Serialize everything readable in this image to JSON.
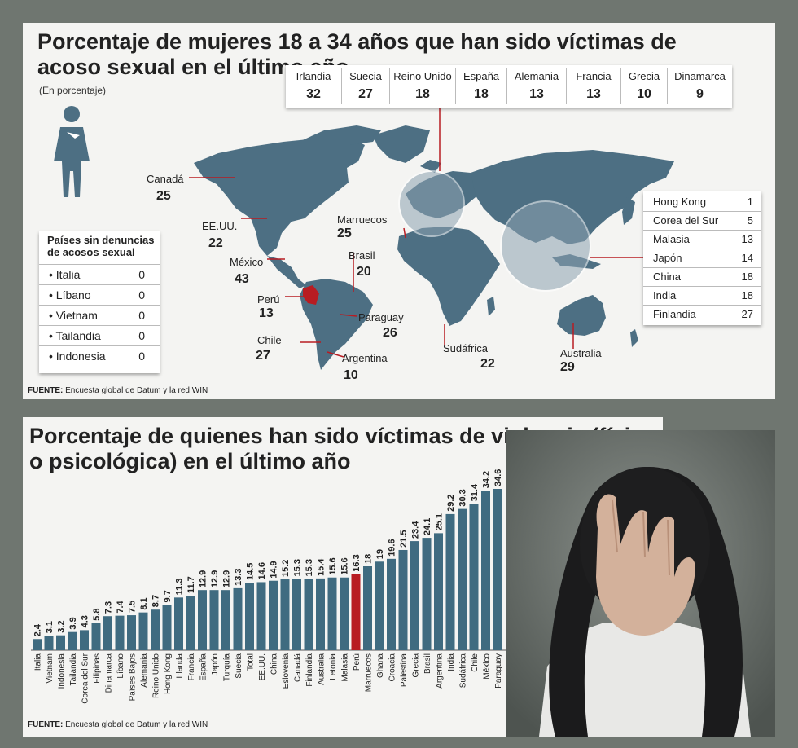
{
  "map_section": {
    "title": "Porcentaje de mujeres 18 a 34 años que han sido víctimas de acoso sexual en el último año",
    "subtitle": "(En porcentaje)",
    "europe_table": [
      {
        "country": "Irlandia",
        "value": "32"
      },
      {
        "country": "Suecia",
        "value": "27"
      },
      {
        "country": "Reino Unido",
        "value": "18"
      },
      {
        "country": "España",
        "value": "18"
      },
      {
        "country": "Alemania",
        "value": "13"
      },
      {
        "country": "Francia",
        "value": "13"
      },
      {
        "country": "Grecia",
        "value": "10"
      },
      {
        "country": "Dinamarca",
        "value": "9"
      }
    ],
    "asia_table": [
      {
        "country": "Hong Kong",
        "value": "1"
      },
      {
        "country": "Corea del Sur",
        "value": "5"
      },
      {
        "country": "Malasia",
        "value": "13"
      },
      {
        "country": "Japón",
        "value": "14"
      },
      {
        "country": "China",
        "value": "18"
      },
      {
        "country": "India",
        "value": "18"
      },
      {
        "country": "Finlandia",
        "value": "27"
      }
    ],
    "no_reports": {
      "title": "Países sin denuncias de acosos sexual",
      "rows": [
        {
          "country": "• Italia",
          "value": "0"
        },
        {
          "country": "• Líbano",
          "value": "0"
        },
        {
          "country": "• Vietnam",
          "value": "0"
        },
        {
          "country": "• Tailandia",
          "value": "0"
        },
        {
          "country": "• Indonesia",
          "value": "0"
        }
      ]
    },
    "map_labels": {
      "canada": {
        "name": "Canadá",
        "value": "25"
      },
      "usa": {
        "name": "EE.UU.",
        "value": "22"
      },
      "mexico": {
        "name": "México",
        "value": "43"
      },
      "peru": {
        "name": "Perú",
        "value": "13"
      },
      "chile": {
        "name": "Chile",
        "value": "27"
      },
      "brasil": {
        "name": "Brasil",
        "value": "20"
      },
      "paraguay": {
        "name": "Paraguay",
        "value": "26"
      },
      "argentina": {
        "name": "Argentina",
        "value": "10"
      },
      "marruecos": {
        "name": "Marruecos",
        "value": "25"
      },
      "sudafrica": {
        "name": "Sudáfrica",
        "value": "22"
      },
      "australia": {
        "name": "Australia",
        "value": "29"
      }
    },
    "source_label": "FUENTE:",
    "source_text": " Encuesta global de Datum y la red WIN"
  },
  "bar_section": {
    "title": "Porcentaje de quienes han sido víctimas de violencia (física o psicológica) en el último año",
    "source_label": "FUENTE:",
    "source_text": " Encuesta global de Datum y la red WIN"
  },
  "colors": {
    "bar": "#3f6b80",
    "highlight": "#b81c22",
    "map_land": "#4d6f83"
  },
  "chart_data": {
    "type": "bar",
    "categories": [
      "Italia",
      "Vietnam",
      "Indonesia",
      "Tailandia",
      "Corea del Sur",
      "Filipinas",
      "Dinamarca",
      "Líbano",
      "Países Bajos",
      "Alemania",
      "Reino Unido",
      "Hong Kong",
      "Irlanda",
      "Francia",
      "España",
      "Japón",
      "Turquía",
      "Suecia",
      "Total",
      "EE.UU.",
      "China",
      "Eslovenia",
      "Canadá",
      "Finlandia",
      "Australia",
      "Letonia",
      "Malasia",
      "Perú",
      "Marruecos",
      "Ghana",
      "Croacia",
      "Palestina",
      "Grecia",
      "Brasil",
      "Argentina",
      "India",
      "Sudáfrica",
      "Chile",
      "México",
      "Paraguay"
    ],
    "value_labels": [
      "2.4",
      "3.1",
      "3.2",
      "3.9",
      "4.3",
      "5.8",
      "7.3",
      "7.4",
      "7.5",
      "8.1",
      "8.7",
      "9.7",
      "11.3",
      "11.7",
      "12.9",
      "12.9",
      "12.9",
      "13.3",
      "14.5",
      "14.6",
      "14.9",
      "15.2",
      "15.3",
      "15.3",
      "15.4",
      "15.6",
      "15.6",
      "16.3",
      "18",
      "19",
      "19.6",
      "21.5",
      "23.4",
      "24.1",
      "25.1",
      "29.2",
      "30.3",
      "31.4",
      "34.2",
      "34.6"
    ],
    "values": [
      2.4,
      3.1,
      3.2,
      3.9,
      4.3,
      5.8,
      7.3,
      7.4,
      7.5,
      8.1,
      8.7,
      9.7,
      11.3,
      11.7,
      12.9,
      12.9,
      12.9,
      13.3,
      14.5,
      14.6,
      14.9,
      15.2,
      15.3,
      15.3,
      15.4,
      15.6,
      15.6,
      16.3,
      18,
      19,
      19.6,
      21.5,
      23.4,
      24.1,
      25.1,
      29.2,
      30.3,
      31.4,
      34.2,
      34.6
    ],
    "highlight": "Perú",
    "ylim": [
      0,
      36
    ]
  }
}
